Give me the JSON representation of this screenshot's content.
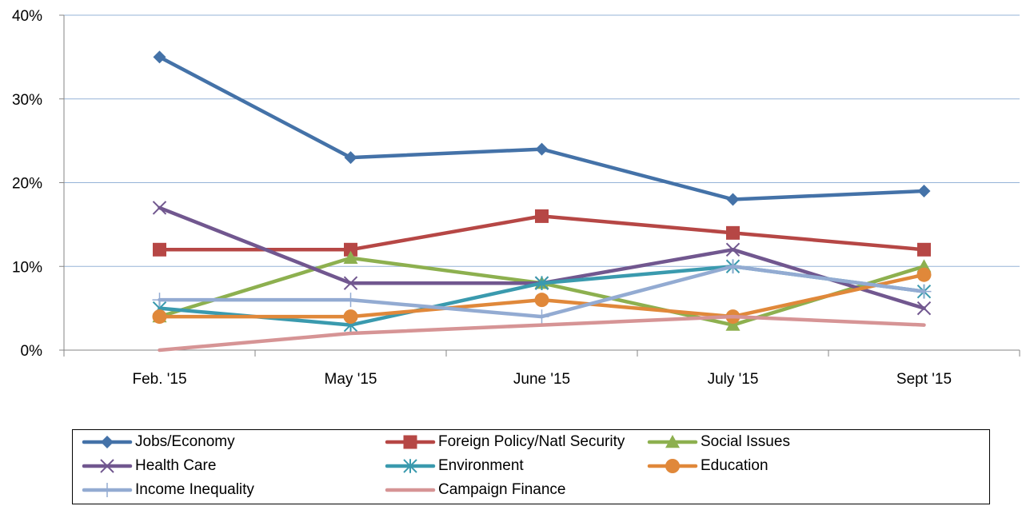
{
  "chart_data": {
    "type": "line",
    "title": "",
    "xlabel": "",
    "ylabel": "",
    "categories": [
      "Feb. '15",
      "May '15",
      "June '15",
      "July '15",
      "Sept '15"
    ],
    "ylim": [
      0,
      40
    ],
    "yticks": [
      0,
      10,
      20,
      30,
      40
    ],
    "ytick_labels": [
      "0%",
      "10%",
      "20%",
      "30%",
      "40%"
    ],
    "grid": true,
    "legend_position": "bottom",
    "series": [
      {
        "name": "Jobs/Economy",
        "values": [
          35,
          23,
          24,
          18,
          19
        ],
        "color": "#4472A8",
        "marker": "diamond"
      },
      {
        "name": "Foreign Policy/Natl Security",
        "values": [
          12,
          12,
          16,
          14,
          12
        ],
        "color": "#B64745",
        "marker": "square"
      },
      {
        "name": "Social Issues",
        "values": [
          4,
          11,
          8,
          3,
          10
        ],
        "color": "#8DB04F",
        "marker": "triangle"
      },
      {
        "name": "Health Care",
        "values": [
          17,
          8,
          8,
          12,
          5
        ],
        "color": "#71578F",
        "marker": "x"
      },
      {
        "name": "Environment",
        "values": [
          5,
          3,
          8,
          10,
          7
        ],
        "color": "#3A9AAE",
        "marker": "star"
      },
      {
        "name": "Education",
        "values": [
          4,
          4,
          6,
          4,
          9
        ],
        "color": "#E0883A",
        "marker": "circle"
      },
      {
        "name": "Income Inequality",
        "values": [
          6,
          6,
          4,
          10,
          7
        ],
        "color": "#93ABD2",
        "marker": "plus"
      },
      {
        "name": "Campaign Finance",
        "values": [
          0,
          2,
          3,
          4,
          3
        ],
        "color": "#D69495",
        "marker": "none"
      }
    ]
  }
}
